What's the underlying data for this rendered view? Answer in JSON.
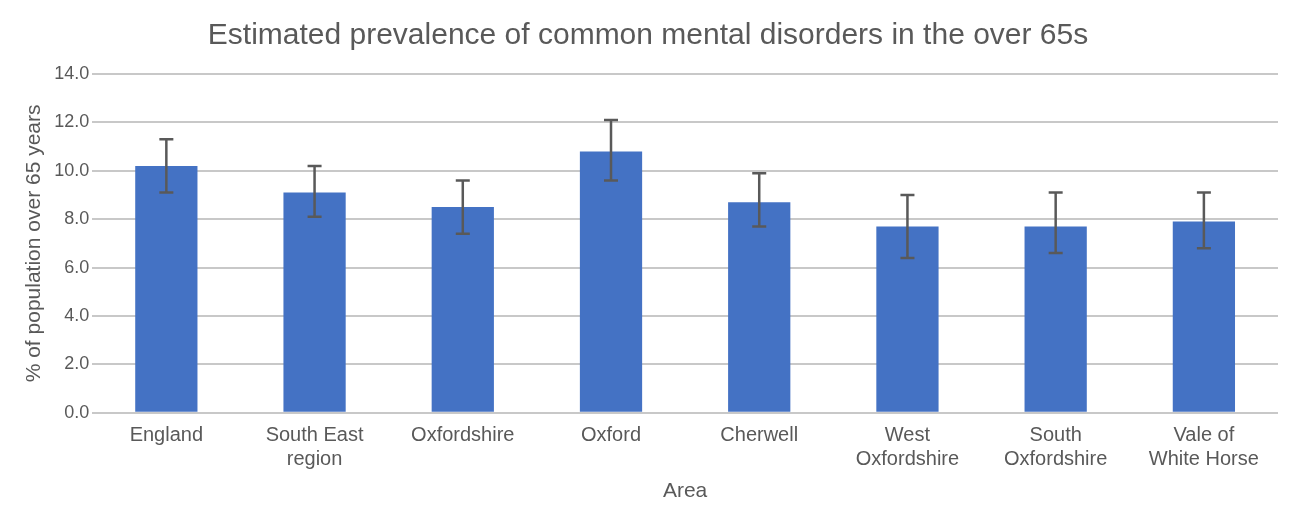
{
  "chart_data": {
    "type": "bar",
    "title": "Estimated prevalence of common mental disorders in the over 65s",
    "xlabel": "Area",
    "ylabel": "% of population over 65 years",
    "categories": [
      [
        "England"
      ],
      [
        "South East",
        "region"
      ],
      [
        "Oxfordshire"
      ],
      [
        "Oxford"
      ],
      [
        "Cherwell"
      ],
      [
        "West",
        "Oxfordshire"
      ],
      [
        "South",
        "Oxfordshire"
      ],
      [
        "Vale of",
        "White Horse"
      ]
    ],
    "values": [
      10.2,
      9.1,
      8.5,
      10.8,
      8.7,
      7.7,
      7.7,
      7.9
    ],
    "errors": [
      [
        9.1,
        11.3
      ],
      [
        8.1,
        10.2
      ],
      [
        7.4,
        9.6
      ],
      [
        9.6,
        12.1
      ],
      [
        7.7,
        9.9
      ],
      [
        6.4,
        9.0
      ],
      [
        6.6,
        9.1
      ],
      [
        6.8,
        9.1
      ]
    ],
    "color": "#4472c4",
    "ylim": [
      0,
      14
    ],
    "yticks": [
      {
        "value": 0,
        "label": "0.0"
      },
      {
        "value": 2,
        "label": "2.0"
      },
      {
        "value": 4,
        "label": "4.0"
      },
      {
        "value": 6,
        "label": "6.0"
      },
      {
        "value": 8,
        "label": "8.0"
      },
      {
        "value": 10,
        "label": "10.0"
      },
      {
        "value": 12,
        "label": "12.0"
      },
      {
        "value": 14,
        "label": "14.0"
      }
    ],
    "grid": "y",
    "legend": false
  }
}
